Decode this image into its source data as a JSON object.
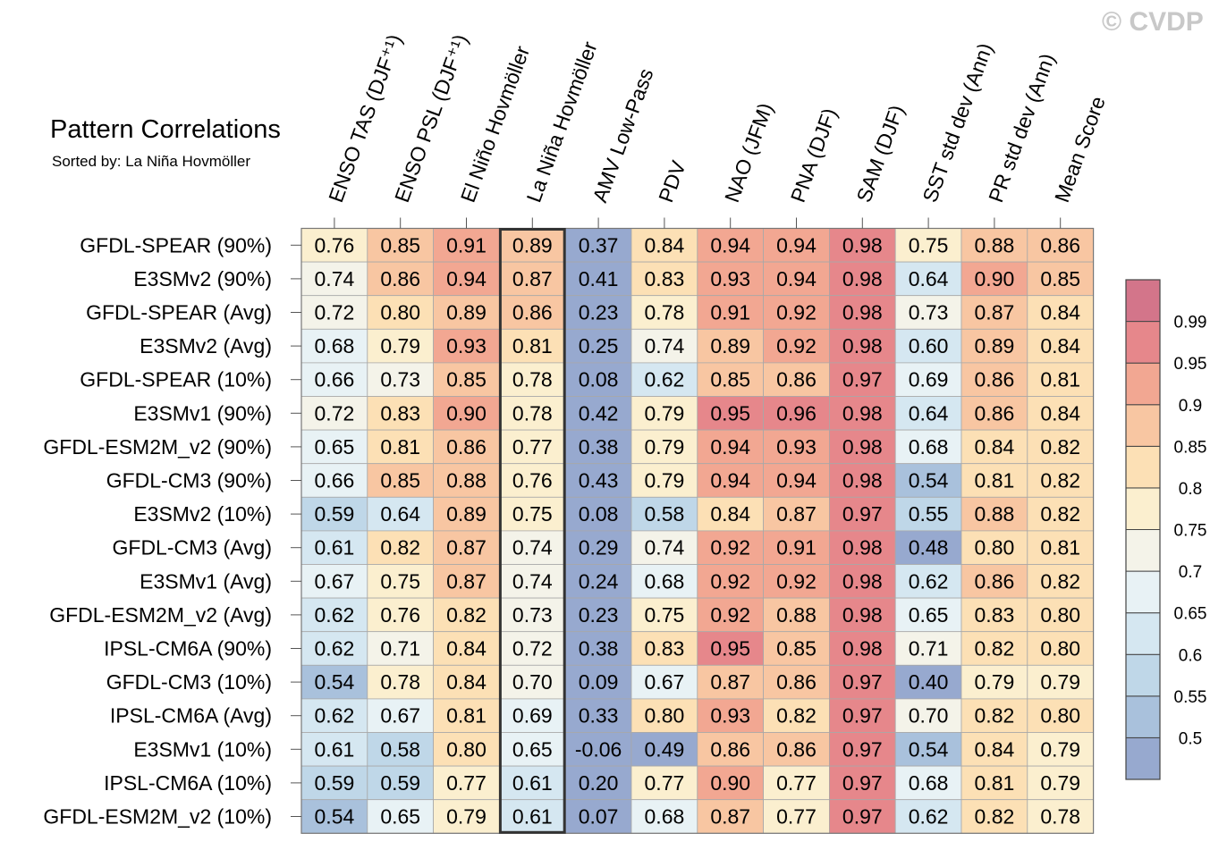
{
  "title": "Pattern Correlations",
  "subtitle": "Sorted by: La Niña Hovmöller",
  "watermark": "© CVDP",
  "chart_data": {
    "type": "heatmap",
    "columns": [
      "ENSO TAS (DJF⁺¹)",
      "ENSO PSL (DJF⁺¹)",
      "El Niño Hovmöller",
      "La Niña Hovmöller",
      "AMV Low-Pass",
      "PDV",
      "NAO (JFM)",
      "PNA (DJF)",
      "SAM (DJF)",
      "SST std dev (Ann)",
      "PR std dev (Ann)",
      "Mean Score"
    ],
    "highlighted_column": "La Niña Hovmöller",
    "rows": [
      {
        "label": "GFDL-SPEAR (90%)",
        "values": [
          0.76,
          0.85,
          0.91,
          0.89,
          0.37,
          0.84,
          0.94,
          0.94,
          0.98,
          0.75,
          0.88,
          0.86
        ]
      },
      {
        "label": "E3SMv2 (90%)",
        "values": [
          0.74,
          0.86,
          0.94,
          0.87,
          0.41,
          0.83,
          0.93,
          0.94,
          0.98,
          0.64,
          0.9,
          0.85
        ]
      },
      {
        "label": "GFDL-SPEAR (Avg)",
        "values": [
          0.72,
          0.8,
          0.89,
          0.86,
          0.23,
          0.78,
          0.91,
          0.92,
          0.98,
          0.73,
          0.87,
          0.84
        ]
      },
      {
        "label": "E3SMv2 (Avg)",
        "values": [
          0.68,
          0.79,
          0.93,
          0.81,
          0.25,
          0.74,
          0.89,
          0.92,
          0.98,
          0.6,
          0.89,
          0.84
        ]
      },
      {
        "label": "GFDL-SPEAR (10%)",
        "values": [
          0.66,
          0.73,
          0.85,
          0.78,
          0.08,
          0.62,
          0.85,
          0.86,
          0.97,
          0.69,
          0.86,
          0.81
        ]
      },
      {
        "label": "E3SMv1 (90%)",
        "values": [
          0.72,
          0.83,
          0.9,
          0.78,
          0.42,
          0.79,
          0.95,
          0.96,
          0.98,
          0.64,
          0.86,
          0.84
        ]
      },
      {
        "label": "GFDL-ESM2M_v2 (90%)",
        "values": [
          0.65,
          0.81,
          0.86,
          0.77,
          0.38,
          0.79,
          0.94,
          0.93,
          0.98,
          0.68,
          0.84,
          0.82
        ]
      },
      {
        "label": "GFDL-CM3 (90%)",
        "values": [
          0.66,
          0.85,
          0.88,
          0.76,
          0.43,
          0.79,
          0.94,
          0.94,
          0.98,
          0.54,
          0.81,
          0.82
        ]
      },
      {
        "label": "E3SMv2 (10%)",
        "values": [
          0.59,
          0.64,
          0.89,
          0.75,
          0.08,
          0.58,
          0.84,
          0.87,
          0.97,
          0.55,
          0.88,
          0.82
        ]
      },
      {
        "label": "GFDL-CM3 (Avg)",
        "values": [
          0.61,
          0.82,
          0.87,
          0.74,
          0.29,
          0.74,
          0.92,
          0.91,
          0.98,
          0.48,
          0.8,
          0.81
        ]
      },
      {
        "label": "E3SMv1 (Avg)",
        "values": [
          0.67,
          0.75,
          0.87,
          0.74,
          0.24,
          0.68,
          0.92,
          0.92,
          0.98,
          0.62,
          0.86,
          0.82
        ]
      },
      {
        "label": "GFDL-ESM2M_v2 (Avg)",
        "values": [
          0.62,
          0.76,
          0.82,
          0.73,
          0.23,
          0.75,
          0.92,
          0.88,
          0.98,
          0.65,
          0.83,
          0.8
        ]
      },
      {
        "label": "IPSL-CM6A (90%)",
        "values": [
          0.62,
          0.71,
          0.84,
          0.72,
          0.38,
          0.83,
          0.95,
          0.85,
          0.98,
          0.71,
          0.82,
          0.8
        ]
      },
      {
        "label": "GFDL-CM3 (10%)",
        "values": [
          0.54,
          0.78,
          0.84,
          0.7,
          0.09,
          0.67,
          0.87,
          0.86,
          0.97,
          0.4,
          0.79,
          0.79
        ]
      },
      {
        "label": "IPSL-CM6A (Avg)",
        "values": [
          0.62,
          0.67,
          0.81,
          0.69,
          0.33,
          0.8,
          0.93,
          0.82,
          0.97,
          0.7,
          0.82,
          0.8
        ]
      },
      {
        "label": "E3SMv1 (10%)",
        "values": [
          0.61,
          0.58,
          0.8,
          0.65,
          -0.06,
          0.49,
          0.86,
          0.86,
          0.97,
          0.54,
          0.84,
          0.79
        ]
      },
      {
        "label": "IPSL-CM6A (10%)",
        "values": [
          0.59,
          0.59,
          0.77,
          0.61,
          0.2,
          0.77,
          0.9,
          0.77,
          0.97,
          0.68,
          0.81,
          0.79
        ]
      },
      {
        "label": "GFDL-ESM2M_v2 (10%)",
        "values": [
          0.54,
          0.65,
          0.79,
          0.61,
          0.07,
          0.68,
          0.87,
          0.77,
          0.97,
          0.62,
          0.82,
          0.78
        ]
      }
    ],
    "colorbar": {
      "boundaries": [
        0.5,
        0.55,
        0.6,
        0.65,
        0.7,
        0.75,
        0.8,
        0.85,
        0.9,
        0.95,
        0.99
      ],
      "tick_labels": [
        "0.99",
        "0.95",
        "0.9",
        "0.85",
        "0.8",
        "0.75",
        "0.7",
        "0.65",
        "0.6",
        "0.55",
        "0.5"
      ],
      "colors": [
        "#97a9cf",
        "#a9c1dc",
        "#bfd7e8",
        "#d5e7f1",
        "#e8f2f5",
        "#f4f3e9",
        "#fbefcf",
        "#fce0b5",
        "#f8c6a2",
        "#f2a792",
        "#e6878b",
        "#d3758a"
      ]
    }
  }
}
